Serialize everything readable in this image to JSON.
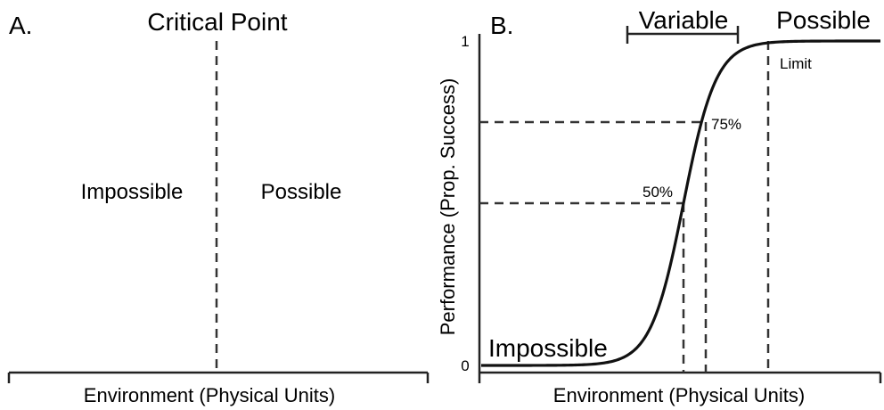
{
  "panel_a": {
    "letter": "A.",
    "critical_label": "Critical Point",
    "left_label": "Impossible",
    "right_label": "Possible",
    "xlabel": "Environment (Physical Units)"
  },
  "panel_b": {
    "letter": "B.",
    "variable_label": "Variable",
    "possible_label": "Possible",
    "limit_label": "Limit",
    "impossible_label": "Impossible",
    "p75_label": "75%",
    "p50_label": "50%",
    "ylabel": "Performance (Prop. Success)",
    "xlabel": "Environment (Physical Units)",
    "y_tick_top": "1",
    "y_tick_bottom": "0"
  },
  "chart_data": {
    "type": "line",
    "curve": "logistic",
    "ylim": [
      0,
      1
    ],
    "y_ticks": [
      "0",
      "1"
    ],
    "markers": [
      {
        "label": "50%",
        "y": 0.5
      },
      {
        "label": "75%",
        "y": 0.75
      }
    ]
  }
}
